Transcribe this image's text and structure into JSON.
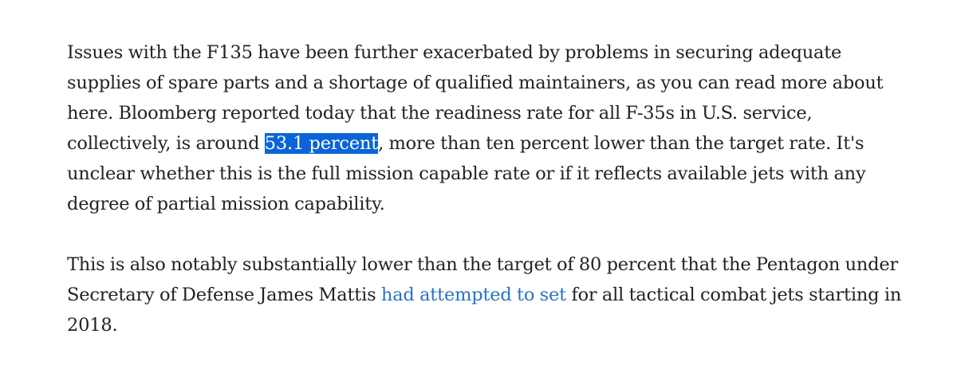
{
  "article": {
    "p1": {
      "before": "Issues with the F135 have been further exacerbated by problems in securing adequate supplies of spare parts and a shortage of qualified maintainers, as you can read more about here. Bloomberg reported today that the readiness rate for all F-35s in U.S. service, collectively, is around ",
      "highlight": "53.1 percent",
      "after": ", more than ten percent lower than the target rate. It's unclear whether this is the full mission capable rate or if it reflects available jets with any degree of partial mission capability."
    },
    "p2": {
      "before": "This is also notably substantially lower than the target of 80 percent that the Pentagon under Secretary of Defense James Mattis ",
      "link": "had attempted to set",
      "after": " for all tactical combat jets starting in 2018."
    }
  },
  "colors": {
    "text": "#222222",
    "highlight_bg": "#0a64d8",
    "link": "#2a72c4"
  }
}
